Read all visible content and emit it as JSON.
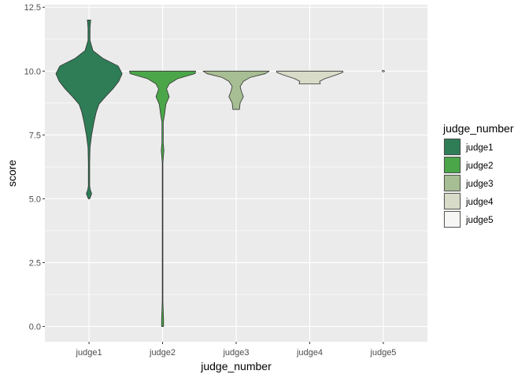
{
  "chart_data": {
    "type": "violin",
    "xlabel": "judge_number",
    "ylabel": "score",
    "categories": [
      "judge1",
      "judge2",
      "judge3",
      "judge4",
      "judge5"
    ],
    "ylim": [
      -0.6,
      12.6
    ],
    "yticks": [
      0.0,
      2.5,
      5.0,
      7.5,
      10.0,
      12.5
    ],
    "ytick_labels": [
      "0.0",
      "2.5",
      "5.0",
      "7.5",
      "10.0",
      "12.5"
    ],
    "grid": true,
    "legend": {
      "title": "judge_number",
      "placement": "right"
    },
    "series": [
      {
        "name": "judge1",
        "color": "#2e7d57",
        "profile": [
          [
            5.0,
            0.02
          ],
          [
            5.2,
            0.08
          ],
          [
            5.35,
            0.04
          ],
          [
            5.5,
            0.02
          ],
          [
            6.0,
            0.02
          ],
          [
            6.4,
            0.02
          ],
          [
            7.0,
            0.03
          ],
          [
            7.5,
            0.08
          ],
          [
            8.0,
            0.15
          ],
          [
            8.4,
            0.22
          ],
          [
            8.7,
            0.3
          ],
          [
            9.0,
            0.5
          ],
          [
            9.3,
            0.72
          ],
          [
            9.6,
            0.9
          ],
          [
            9.9,
            1.0
          ],
          [
            10.2,
            0.88
          ],
          [
            10.5,
            0.42
          ],
          [
            10.8,
            0.12
          ],
          [
            11.2,
            0.03
          ],
          [
            11.7,
            0.03
          ],
          [
            12.0,
            0.05
          ]
        ]
      },
      {
        "name": "judge2",
        "color": "#4ba64a",
        "profile": [
          [
            0.0,
            0.03
          ],
          [
            0.3,
            0.03
          ],
          [
            0.6,
            0.02
          ],
          [
            1.0,
            0.0
          ],
          [
            6.4,
            0.0
          ],
          [
            6.9,
            0.04
          ],
          [
            7.2,
            0.02
          ],
          [
            8.0,
            0.02
          ],
          [
            8.3,
            0.06
          ],
          [
            8.7,
            0.1
          ],
          [
            9.0,
            0.2
          ],
          [
            9.3,
            0.12
          ],
          [
            9.5,
            0.2
          ],
          [
            9.7,
            0.45
          ],
          [
            9.9,
            0.98
          ],
          [
            10.0,
            1.0
          ]
        ]
      },
      {
        "name": "judge3",
        "color": "#a7bd93",
        "profile": [
          [
            8.5,
            0.1
          ],
          [
            8.75,
            0.12
          ],
          [
            9.0,
            0.22
          ],
          [
            9.2,
            0.16
          ],
          [
            9.4,
            0.12
          ],
          [
            9.6,
            0.22
          ],
          [
            9.75,
            0.42
          ],
          [
            9.9,
            0.88
          ],
          [
            10.0,
            1.0
          ]
        ]
      },
      {
        "name": "judge4",
        "color": "#d8dbc7",
        "profile": [
          [
            9.5,
            0.32
          ],
          [
            9.6,
            0.3
          ],
          [
            9.7,
            0.45
          ],
          [
            9.85,
            0.8
          ],
          [
            9.95,
            1.0
          ],
          [
            10.0,
            1.0
          ]
        ]
      },
      {
        "name": "judge5",
        "color": "#f6f6f4",
        "profile": [
          [
            9.97,
            0.0
          ],
          [
            10.0,
            0.04
          ],
          [
            10.03,
            0.0
          ]
        ]
      }
    ]
  }
}
